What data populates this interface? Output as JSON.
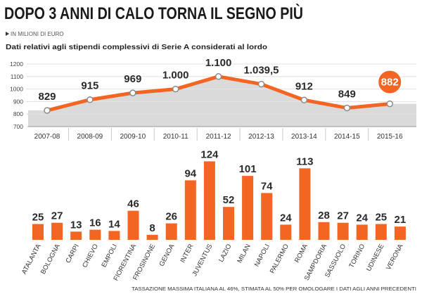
{
  "title": "DOPO 3 ANNI DI CALO TORNA IL SEGNO PIÙ",
  "unit_note": "IN MILIONI DI EURO",
  "subtitle": "Dati relativi agli stipendi complessivi di Serie A considerati al lordo",
  "footnote": "TASSAZIONE MASSIMA ITALIANA AL 46%, STIMATA AL 50% PER OMOLOGARE I DATI AGLI ANNI PRECEDENTI",
  "icons": {
    "unit_marker": "play-arrow-icon"
  },
  "colors": {
    "accent": "#f26522",
    "area": "#d6d6d6",
    "grid": "#c9c9c9",
    "point_stroke": "#8a8a8a"
  },
  "chart_data": [
    {
      "type": "line",
      "categories": [
        "2007-08",
        "2008-09",
        "2009-10",
        "2010-11",
        "2011-12",
        "2012-13",
        "2013-14",
        "2014-15",
        "2015-16"
      ],
      "values": [
        829,
        915,
        969,
        1000,
        1100,
        1039.5,
        912,
        849,
        882
      ],
      "value_labels": [
        "829",
        "915",
        "969",
        "1.000",
        "1.100",
        "1.039,5",
        "912",
        "849",
        "882"
      ],
      "y_ticks": [
        1200,
        1100,
        1000,
        900,
        800,
        700
      ],
      "ylim": [
        700,
        1200
      ],
      "highlight_index": 8,
      "grid": true,
      "xlabel": "",
      "ylabel": ""
    },
    {
      "type": "bar",
      "categories": [
        "ATALANTA",
        "BOLOGNA",
        "CARPI",
        "CHIEVO",
        "EMPOLI",
        "FIORENTINA",
        "FROSINONE",
        "GENOA",
        "INTER",
        "JUVENTUS",
        "LAZIO",
        "MILAN",
        "NAPOLI",
        "PALERMO",
        "ROMA",
        "SAMPDORIA",
        "SASSUOLO",
        "TORINO",
        "UDINESE",
        "VERONA"
      ],
      "values": [
        25,
        27,
        13,
        16,
        14,
        46,
        8,
        26,
        94,
        124,
        52,
        101,
        74,
        24,
        113,
        28,
        27,
        24,
        25,
        21
      ],
      "ylim": [
        0,
        124
      ],
      "grid": false,
      "xlabel": "",
      "ylabel": ""
    }
  ]
}
